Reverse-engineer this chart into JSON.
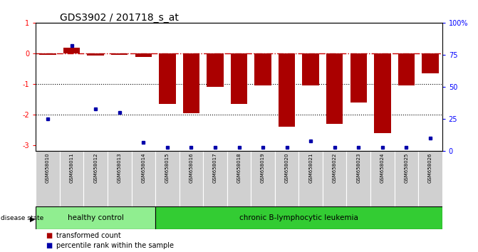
{
  "title": "GDS3902 / 201718_s_at",
  "samples": [
    "GSM658010",
    "GSM658011",
    "GSM658012",
    "GSM658013",
    "GSM658014",
    "GSM658015",
    "GSM658016",
    "GSM658017",
    "GSM658018",
    "GSM658019",
    "GSM658020",
    "GSM658021",
    "GSM658022",
    "GSM658023",
    "GSM658024",
    "GSM658025",
    "GSM658026"
  ],
  "transformed_count": [
    -0.05,
    0.18,
    -0.07,
    -0.04,
    -0.12,
    -1.65,
    -1.95,
    -1.1,
    -1.65,
    -1.05,
    -2.4,
    -1.05,
    -2.3,
    -1.6,
    -2.6,
    -1.05,
    -0.65
  ],
  "percentile_rank": [
    25,
    82,
    33,
    30,
    7,
    3,
    3,
    3,
    3,
    3,
    3,
    8,
    3,
    3,
    3,
    3,
    10
  ],
  "healthy_control_count": 5,
  "disease_label1": "healthy control",
  "disease_label2": "chronic B-lymphocytic leukemia",
  "bar_color": "#AA0000",
  "dot_color": "#0000AA",
  "left_ylim": [
    -3.2,
    1.0
  ],
  "right_ylim": [
    0,
    100
  ],
  "hline_zero_color": "#CC0000",
  "background_color": "#FFFFFF",
  "healthy_bg": "#90EE90",
  "leukemia_bg": "#33CC33",
  "tick_area_bg": "#C8C8C8"
}
